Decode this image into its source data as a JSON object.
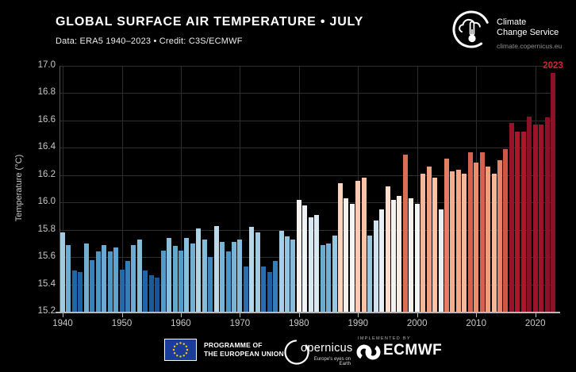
{
  "header": {
    "title": "GLOBAL SURFACE AIR TEMPERATURE • JULY",
    "subtitle": "Data: ERA5 1940–2023 • Credit: C3S/ECMWF"
  },
  "brand": {
    "line1": "Climate",
    "line2": "Change Service",
    "url": "climate.copernicus.eu"
  },
  "chart_data": {
    "type": "bar",
    "title": "GLOBAL SURFACE AIR TEMPERATURE • JULY",
    "ylabel": "Temperature (°C)",
    "ylim": [
      15.2,
      17.0
    ],
    "ytick_step": 0.2,
    "xticks": [
      1940,
      1950,
      1960,
      1970,
      1980,
      1990,
      2000,
      2010,
      2020
    ],
    "grid": true,
    "background": "#000000",
    "years": [
      1940,
      1941,
      1942,
      1943,
      1944,
      1945,
      1946,
      1947,
      1948,
      1949,
      1950,
      1951,
      1952,
      1953,
      1954,
      1955,
      1956,
      1957,
      1958,
      1959,
      1960,
      1961,
      1962,
      1963,
      1964,
      1965,
      1966,
      1967,
      1968,
      1969,
      1970,
      1971,
      1972,
      1973,
      1974,
      1975,
      1976,
      1977,
      1978,
      1979,
      1980,
      1981,
      1982,
      1983,
      1984,
      1985,
      1986,
      1987,
      1988,
      1989,
      1990,
      1991,
      1992,
      1993,
      1994,
      1995,
      1996,
      1997,
      1998,
      1999,
      2000,
      2001,
      2002,
      2003,
      2004,
      2005,
      2006,
      2007,
      2008,
      2009,
      2010,
      2011,
      2012,
      2013,
      2014,
      2015,
      2016,
      2017,
      2018,
      2019,
      2020,
      2021,
      2022,
      2023
    ],
    "values": [
      15.78,
      15.69,
      15.5,
      15.49,
      15.7,
      15.58,
      15.64,
      15.69,
      15.64,
      15.67,
      15.51,
      15.57,
      15.69,
      15.73,
      15.5,
      15.47,
      15.45,
      15.65,
      15.74,
      15.68,
      15.65,
      15.74,
      15.7,
      15.81,
      15.73,
      15.6,
      15.83,
      15.71,
      15.64,
      15.71,
      15.73,
      15.53,
      15.82,
      15.78,
      15.53,
      15.49,
      15.57,
      15.79,
      15.75,
      15.73,
      16.02,
      15.98,
      15.89,
      15.91,
      15.69,
      15.7,
      15.76,
      16.14,
      16.03,
      15.99,
      16.16,
      16.18,
      15.76,
      15.87,
      15.95,
      16.12,
      16.02,
      16.05,
      16.35,
      16.03,
      15.99,
      16.21,
      16.26,
      16.18,
      15.95,
      16.32,
      16.23,
      16.24,
      16.21,
      16.37,
      16.29,
      16.37,
      16.26,
      16.21,
      16.31,
      16.39,
      16.58,
      16.52,
      16.52,
      16.63,
      16.57,
      16.57,
      16.62,
      16.95
    ],
    "annotation": {
      "text": "2023",
      "color": "#d2232e"
    },
    "colormap": {
      "stops": [
        "#0b3d6f",
        "#2166ac",
        "#4393c3",
        "#92c5de",
        "#d1e5f0",
        "#f7f7f7",
        "#fddbc7",
        "#f4a582",
        "#d6604d",
        "#b2182b",
        "#8c1127"
      ],
      "domain": [
        15.38,
        16.62
      ]
    },
    "axis_color": "#b8b8b8",
    "grid_color": "#2e2e2e"
  },
  "footer": {
    "eu_line1": "PROGRAMME OF",
    "eu_line2": "THE EUROPEAN UNION",
    "copernicus_word": "opernicus",
    "copernicus_tagline": "Europe's eyes on Earth",
    "implemented_by": "IMPLEMENTED BY",
    "ecmwf": "ECMWF"
  }
}
